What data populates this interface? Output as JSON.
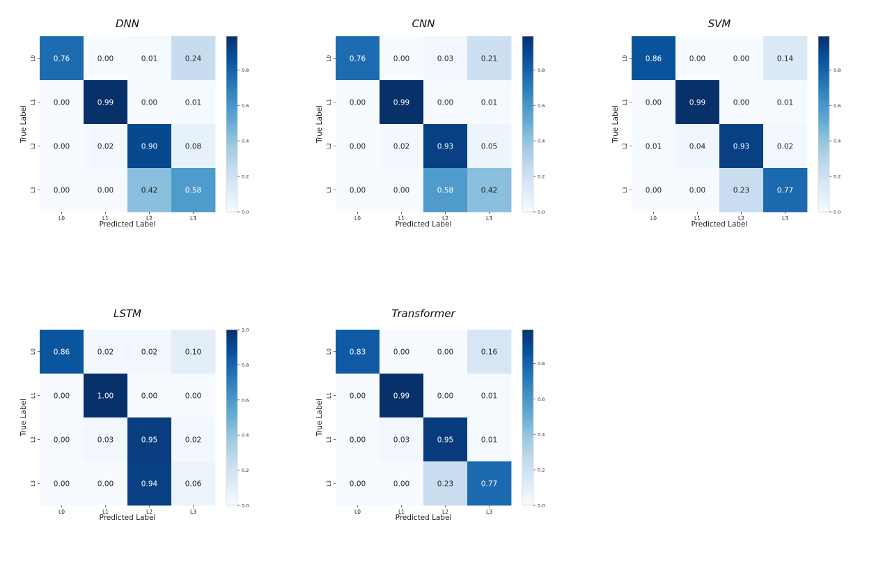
{
  "chart_data": [
    {
      "type": "heatmap",
      "title": "DNN",
      "xlabel": "Predicted Label",
      "ylabel": "True Label",
      "x_ticks": [
        "L0",
        "L1",
        "L2",
        "L3"
      ],
      "y_ticks": [
        "L0",
        "L1",
        "L2",
        "L3"
      ],
      "values": [
        [
          0.76,
          0.0,
          0.01,
          0.24
        ],
        [
          0.0,
          0.99,
          0.0,
          0.01
        ],
        [
          0.0,
          0.02,
          0.9,
          0.08
        ],
        [
          0.0,
          0.0,
          0.42,
          0.58
        ]
      ],
      "colorbar_ticks": [
        "0.0",
        "0.2",
        "0.4",
        "0.6",
        "0.8"
      ],
      "colorbar_range": [
        0.0,
        0.99
      ]
    },
    {
      "type": "heatmap",
      "title": "CNN",
      "xlabel": "Predicted Label",
      "ylabel": "True Label",
      "x_ticks": [
        "L0",
        "L1",
        "L2",
        "L3"
      ],
      "y_ticks": [
        "L0",
        "L1",
        "L2",
        "L3"
      ],
      "values": [
        [
          0.76,
          0.0,
          0.03,
          0.21
        ],
        [
          0.0,
          0.99,
          0.0,
          0.01
        ],
        [
          0.0,
          0.02,
          0.93,
          0.05
        ],
        [
          0.0,
          0.0,
          0.58,
          0.42
        ]
      ],
      "colorbar_ticks": [
        "0.0",
        "0.2",
        "0.4",
        "0.6",
        "0.8"
      ],
      "colorbar_range": [
        0.0,
        0.99
      ]
    },
    {
      "type": "heatmap",
      "title": "SVM",
      "xlabel": "Predicted Label",
      "ylabel": "True Label",
      "x_ticks": [
        "L0",
        "L1",
        "L2",
        "L3"
      ],
      "y_ticks": [
        "L0",
        "L1",
        "L2",
        "L3"
      ],
      "values": [
        [
          0.86,
          0.0,
          0.0,
          0.14
        ],
        [
          0.0,
          0.99,
          0.0,
          0.01
        ],
        [
          0.01,
          0.04,
          0.93,
          0.02
        ],
        [
          0.0,
          0.0,
          0.23,
          0.77
        ]
      ],
      "colorbar_ticks": [
        "0.0",
        "0.2",
        "0.4",
        "0.6",
        "0.8"
      ],
      "colorbar_range": [
        0.0,
        0.99
      ]
    },
    {
      "type": "heatmap",
      "title": "LSTM",
      "xlabel": "Predicted Label",
      "ylabel": "True Label",
      "x_ticks": [
        "L0",
        "L1",
        "L2",
        "L3"
      ],
      "y_ticks": [
        "L0",
        "L1",
        "L2",
        "L3"
      ],
      "values": [
        [
          0.86,
          0.02,
          0.02,
          0.1
        ],
        [
          0.0,
          1.0,
          0.0,
          0.0
        ],
        [
          0.0,
          0.03,
          0.95,
          0.02
        ],
        [
          0.0,
          0.0,
          0.94,
          0.06
        ]
      ],
      "colorbar_ticks": [
        "0.0",
        "0.2",
        "0.4",
        "0.6",
        "0.8",
        "1.0"
      ],
      "colorbar_range": [
        0.0,
        1.0
      ]
    },
    {
      "type": "heatmap",
      "title": "Transformer",
      "xlabel": "Predicted Label",
      "ylabel": "True Label",
      "x_ticks": [
        "L0",
        "L1",
        "L2",
        "L3"
      ],
      "y_ticks": [
        "L0",
        "L1",
        "L2",
        "L3"
      ],
      "values": [
        [
          0.83,
          0.0,
          0.0,
          0.16
        ],
        [
          0.0,
          0.99,
          0.0,
          0.01
        ],
        [
          0.0,
          0.03,
          0.95,
          0.01
        ],
        [
          0.0,
          0.0,
          0.23,
          0.77
        ]
      ],
      "colorbar_ticks": [
        "0.0",
        "0.2",
        "0.4",
        "0.6",
        "0.8"
      ],
      "colorbar_range": [
        0.0,
        0.99
      ]
    }
  ],
  "colors": {
    "colormap": "Blues",
    "light_text": "#ffffff",
    "dark_text": "#262626"
  }
}
